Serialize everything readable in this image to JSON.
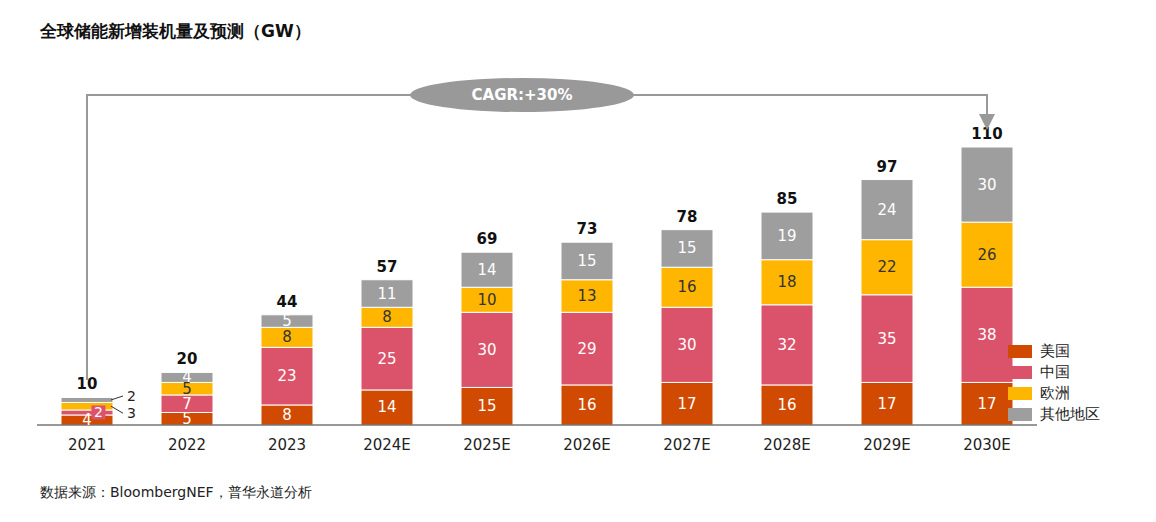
{
  "chart_data": {
    "type": "bar",
    "title": "全球储能新增装机量及预测（GW）",
    "source": "数据来源：BloombergNEF，普华永道分析",
    "annotation": "CAGR:+30%",
    "categories": [
      "2021",
      "2022",
      "2023",
      "2024E",
      "2025E",
      "2026E",
      "2027E",
      "2028E",
      "2029E",
      "2030E"
    ],
    "series": [
      {
        "name": "美国",
        "color": "#d04a02",
        "values": [
          4,
          5,
          8,
          14,
          15,
          16,
          17,
          16,
          17,
          17
        ]
      },
      {
        "name": "中国",
        "color": "#db536a",
        "values": [
          2,
          7,
          23,
          25,
          30,
          29,
          30,
          32,
          35,
          38
        ]
      },
      {
        "name": "欧洲",
        "color": "#ffb600",
        "values": [
          3,
          5,
          8,
          8,
          10,
          13,
          16,
          18,
          22,
          26
        ]
      },
      {
        "name": "其他地区",
        "color": "#9e9e9e",
        "values": [
          2,
          4,
          5,
          11,
          14,
          15,
          15,
          19,
          24,
          30
        ]
      }
    ],
    "totals": [
      10,
      20,
      44,
      57,
      69,
      73,
      78,
      85,
      97,
      110
    ],
    "stacked": true,
    "data_labels": true,
    "legend": "right",
    "tick_labels": "x"
  }
}
